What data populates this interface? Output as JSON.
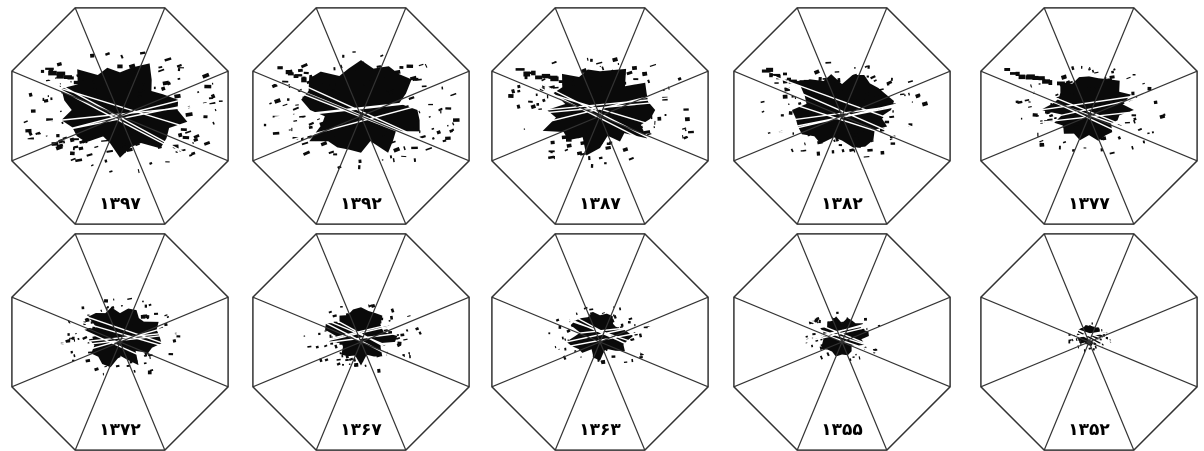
{
  "figure": {
    "panels": [
      {
        "year": "۱۳۹۷",
        "extent": 1.0
      },
      {
        "year": "۱۳۹۲",
        "extent": 0.96
      },
      {
        "year": "۱۳۸۷",
        "extent": 0.92
      },
      {
        "year": "۱۳۸۲",
        "extent": 0.8
      },
      {
        "year": "۱۳۷۷",
        "extent": 0.72
      },
      {
        "year": "۱۳۷۲",
        "extent": 0.62
      },
      {
        "year": "۱۳۶۷",
        "extent": 0.56
      },
      {
        "year": "۱۳۶۳",
        "extent": 0.5
      },
      {
        "year": "۱۳۵۵",
        "extent": 0.4
      },
      {
        "year": "۱۳۵۲",
        "extent": 0.22
      }
    ]
  },
  "colors": {
    "outline": "#333333",
    "urban_fill": "#0a0a0a",
    "background": "#ffffff"
  }
}
